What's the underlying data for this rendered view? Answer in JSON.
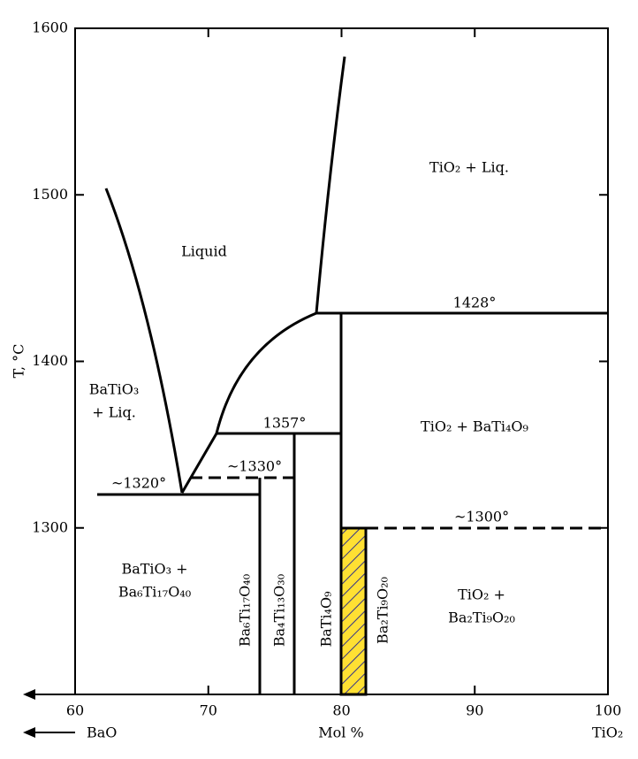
{
  "axes": {
    "x_label": "Mol %",
    "y_label": "T, °C",
    "left_end": "BaO",
    "right_end": "TiO₂",
    "xlim": [
      60,
      100
    ],
    "ylim": [
      1200,
      1600
    ],
    "xticks": [
      60,
      70,
      80,
      90,
      100
    ],
    "yticks": [
      1300,
      1400,
      1500,
      1600
    ]
  },
  "regions": [
    [
      "Liquid"
    ],
    [
      "TiO₂ + Liq."
    ],
    [
      "BaTiO₃",
      "+ Liq."
    ],
    [
      "TiO₂ + BaTi₄O₉"
    ],
    [
      "BaTiO₃ +",
      "Ba₆Ti₁₇O₄₀"
    ],
    [
      "TiO₂ +",
      "Ba₂Ti₉O₂₀"
    ]
  ],
  "temperatures": [
    "1428°",
    "1357°",
    "~1330°",
    "~1320°",
    "~1300°"
  ],
  "compounds": [
    "Ba₆Ti₁₇O₄₀",
    "Ba₄Ti₁₃O₃₀",
    "BaTi₄O₉",
    "Ba₂Ti₉O₂₀"
  ]
}
